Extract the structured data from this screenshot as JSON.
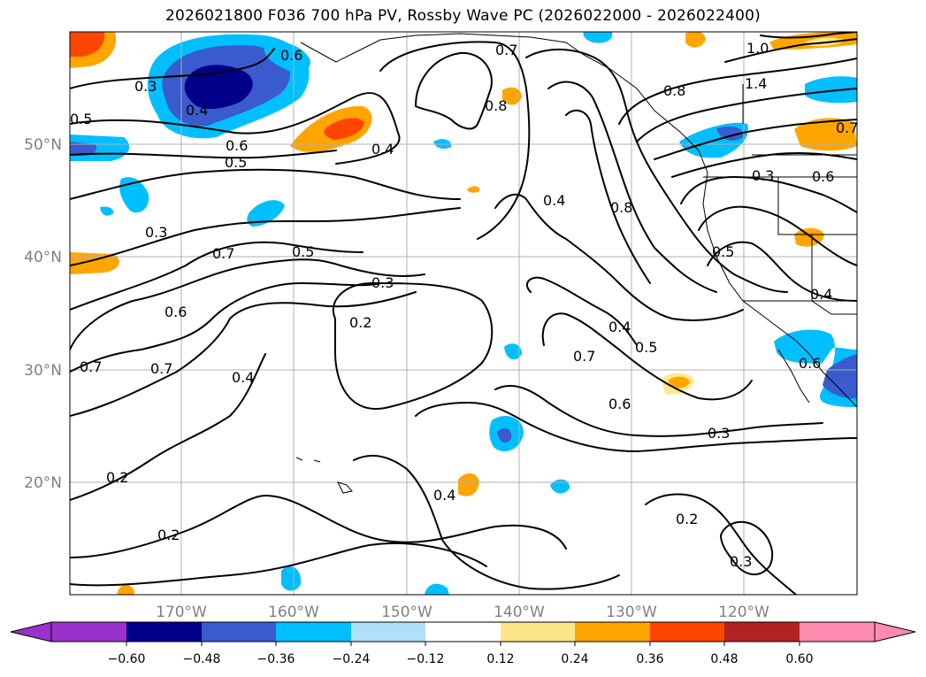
{
  "title": "2026021800 F036 700 hPa PV, Rossby Wave PC (2026022000 - 2026022400)",
  "map": {
    "lon_range": [
      -180,
      -110
    ],
    "lat_range": [
      10,
      60
    ],
    "lat_labels": [
      "50°N",
      "40°N",
      "30°N",
      "20°N"
    ],
    "lon_labels": [
      "170°W",
      "160°W",
      "150°W",
      "140°W",
      "130°W",
      "120°W"
    ],
    "contour_labels": [
      "0.3",
      "0.5",
      "0.6",
      "0.5",
      "0.4",
      "0.6",
      "0.4",
      "0.3",
      "0.7",
      "0.5",
      "0.3",
      "0.2",
      "0.6",
      "0.7",
      "0.4",
      "0.7",
      "0.2",
      "0.2",
      "0.4",
      "0.8",
      "0.7",
      "0.4",
      "0.8",
      "0.5",
      "0.4",
      "0.7",
      "0.5",
      "0.6",
      "0.3",
      "0.2",
      "0.3",
      "0.3",
      "0.6",
      "0.4",
      "0.6",
      "0.8",
      "1.0",
      "1.4",
      "0.7"
    ],
    "pv_contour_levels": [
      0.2,
      0.3,
      0.4,
      0.5,
      0.6,
      0.7,
      0.8,
      1.0,
      1.4
    ]
  },
  "colorbar": {
    "ticks": [
      "−0.60",
      "−0.48",
      "−0.36",
      "−0.24",
      "−0.12",
      "0.12",
      "0.24",
      "0.36",
      "0.48",
      "0.60"
    ],
    "colors": [
      "#9932cc",
      "#00008b",
      "#3a5bcd",
      "#00bfff",
      "#b0e0f8",
      "#ffffff",
      "#fde68a",
      "#ffa500",
      "#ff4500",
      "#b22222",
      "#ff8cb0"
    ],
    "extend": "both"
  }
}
